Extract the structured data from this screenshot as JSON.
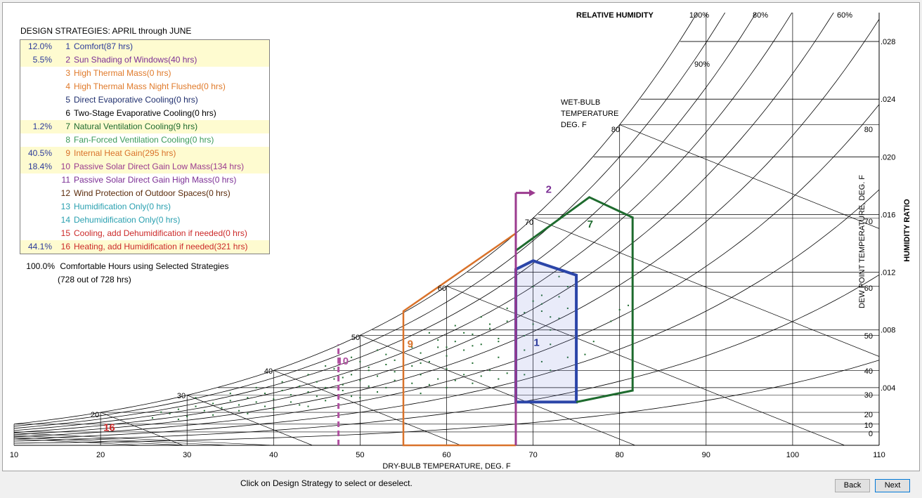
{
  "legend": {
    "title": "DESIGN STRATEGIES:  APRIL through JUNE",
    "items": [
      {
        "pct": "12.0%",
        "num": "1",
        "label": "Comfort(87 hrs)",
        "color": "#2b3a9a",
        "selected": true
      },
      {
        "pct": "5.5%",
        "num": "2",
        "label": "Sun Shading of Windows(40 hrs)",
        "color": "#7b2f95",
        "selected": true
      },
      {
        "pct": "",
        "num": "3",
        "label": "High Thermal Mass(0 hrs)",
        "color": "#e07a2a",
        "selected": false
      },
      {
        "pct": "",
        "num": "4",
        "label": "High Thermal Mass Night Flushed(0 hrs)",
        "color": "#e07a2a",
        "selected": false
      },
      {
        "pct": "",
        "num": "5",
        "label": "Direct Evaporative Cooling(0 hrs)",
        "color": "#1f2f6e",
        "selected": false
      },
      {
        "pct": "",
        "num": "6",
        "label": "Two-Stage Evaporative Cooling(0 hrs)",
        "color": "#000000",
        "selected": false
      },
      {
        "pct": "1.2%",
        "num": "7",
        "label": "Natural Ventilation Cooling(9 hrs)",
        "color": "#1e6b2e",
        "selected": true
      },
      {
        "pct": "",
        "num": "8",
        "label": "Fan-Forced Ventilation Cooling(0 hrs)",
        "color": "#3a9a5a",
        "selected": false
      },
      {
        "pct": "40.5%",
        "num": "9",
        "label": "Internal Heat Gain(295 hrs)",
        "color": "#d9722a",
        "selected": true
      },
      {
        "pct": "18.4%",
        "num": "10",
        "label": "Passive Solar Direct Gain Low Mass(134 hrs)",
        "color": "#9b3b8f",
        "selected": true
      },
      {
        "pct": "",
        "num": "11",
        "label": "Passive Solar Direct Gain High Mass(0 hrs)",
        "color": "#7b2f95",
        "selected": false
      },
      {
        "pct": "",
        "num": "12",
        "label": "Wind Protection of Outdoor Spaces(0 hrs)",
        "color": "#5a2a0a",
        "selected": false
      },
      {
        "pct": "",
        "num": "13",
        "label": "Humidification Only(0 hrs)",
        "color": "#2aa0b0",
        "selected": false
      },
      {
        "pct": "",
        "num": "14",
        "label": "Dehumidification Only(0 hrs)",
        "color": "#2aa0b0",
        "selected": false
      },
      {
        "pct": "",
        "num": "15",
        "label": "Cooling, add Dehumidification if needed(0 hrs)",
        "color": "#cc2a2a",
        "selected": false
      },
      {
        "pct": "44.1%",
        "num": "16",
        "label": "Heating, add Humidification if needed(321 hrs)",
        "color": "#cc2a2a",
        "selected": true
      }
    ],
    "comfortable_pct": "100.0%",
    "comfortable_label": "Comfortable Hours using Selected Strategies",
    "comfortable_sub": "(728 out of 728 hrs)"
  },
  "chart_data": {
    "type": "scatter",
    "xlabel": "DRY-BULB TEMPERATURE, DEG. F",
    "xlim": [
      10,
      110
    ],
    "x_ticks": [
      "10",
      "20",
      "30",
      "40",
      "50",
      "60",
      "70",
      "80",
      "90",
      "100",
      "110"
    ],
    "ylim": [
      0,
      0.03
    ],
    "ylabel_right": "HUMIDITY RATIO",
    "ratio_ticks": [
      ".004",
      ".008",
      ".012",
      ".016",
      ".020",
      ".024",
      ".028"
    ],
    "dewpoint_label": "DEW POINT TEMPERATURE, DEG. F",
    "dewpoint_ticks": [
      "0",
      "10",
      "20",
      "30",
      "40",
      "50",
      "60",
      "70",
      "80"
    ],
    "rh_title": "RELATIVE HUMIDITY",
    "rh_ticks": [
      "100%",
      "80%",
      "60%"
    ],
    "rh_inner_label": "90%",
    "wetbulb_label": [
      "WET-BULB",
      "TEMPERATURE",
      "DEG. F"
    ],
    "wetbulb_ticks": [
      "20",
      "30",
      "40",
      "50",
      "60",
      "70",
      "80"
    ],
    "zone_labels": [
      {
        "text": "1",
        "color": "#2b3a9a"
      },
      {
        "text": "2",
        "color": "#7b2f95"
      },
      {
        "text": "7",
        "color": "#1e6b2e"
      },
      {
        "text": "9",
        "color": "#d9722a"
      },
      {
        "text": "10",
        "color": "#b050a0"
      },
      {
        "text": "16",
        "color": "#cc2a2a"
      }
    ],
    "zones": {
      "comfort": {
        "color": "#2b45a8",
        "points": [
          [
            68,
            0.003
          ],
          [
            75,
            0.003
          ],
          [
            75,
            0.0118
          ],
          [
            70,
            0.0128
          ],
          [
            68,
            0.0122
          ]
        ]
      },
      "ventilation": {
        "color": "#1e6b2e",
        "points": [
          [
            75,
            0.003
          ],
          [
            81.5,
            0.0038
          ],
          [
            81.5,
            0.0158
          ],
          [
            76.5,
            0.0172
          ],
          [
            68,
            0.0135
          ]
        ]
      },
      "internal_gain": {
        "color": "#d9722a",
        "points": [
          [
            68,
            0.0
          ],
          [
            55,
            0.0
          ],
          [
            55,
            0.0093
          ],
          [
            68,
            0.0147
          ]
        ]
      },
      "shading_line": {
        "color": "#9b3b8f",
        "x": 68,
        "y_top": 0.0175
      },
      "passive_solar_line": {
        "color": "#b050a0",
        "x": 47.5,
        "y_top": 0.007
      }
    },
    "hourly_points_color": "#1e6b2e",
    "hourly_points": [
      [
        28,
        0.0022
      ],
      [
        29,
        0.0025
      ],
      [
        30,
        0.002
      ],
      [
        31,
        0.0027
      ],
      [
        32,
        0.0024
      ],
      [
        33,
        0.0029
      ],
      [
        34,
        0.0026
      ],
      [
        35,
        0.0031
      ],
      [
        36,
        0.0028
      ],
      [
        37,
        0.0033
      ],
      [
        38,
        0.003
      ],
      [
        39,
        0.0036
      ],
      [
        40,
        0.0032
      ],
      [
        41,
        0.0038
      ],
      [
        42,
        0.0035
      ],
      [
        43,
        0.0041
      ],
      [
        44,
        0.0037
      ],
      [
        45,
        0.0044
      ],
      [
        46,
        0.004
      ],
      [
        47,
        0.0046
      ],
      [
        48,
        0.0042
      ],
      [
        49,
        0.0049
      ],
      [
        50,
        0.0045
      ],
      [
        51,
        0.0052
      ],
      [
        52,
        0.0048
      ],
      [
        53,
        0.0056
      ],
      [
        54,
        0.0051
      ],
      [
        55,
        0.006
      ],
      [
        56,
        0.0055
      ],
      [
        57,
        0.0064
      ],
      [
        58,
        0.0058
      ],
      [
        59,
        0.0068
      ],
      [
        60,
        0.0062
      ],
      [
        61,
        0.0072
      ],
      [
        62,
        0.0066
      ],
      [
        63,
        0.0077
      ],
      [
        64,
        0.007
      ],
      [
        65,
        0.0081
      ],
      [
        66,
        0.0074
      ],
      [
        67,
        0.0086
      ],
      [
        68,
        0.0079
      ],
      [
        69,
        0.0092
      ],
      [
        70,
        0.0084
      ],
      [
        71,
        0.0098
      ],
      [
        72,
        0.0089
      ],
      [
        73,
        0.0103
      ],
      [
        74,
        0.0095
      ],
      [
        75,
        0.0109
      ],
      [
        29,
        0.0018
      ],
      [
        33,
        0.0021
      ],
      [
        36,
        0.0024
      ],
      [
        39,
        0.0027
      ],
      [
        42,
        0.003
      ],
      [
        45,
        0.0034
      ],
      [
        48,
        0.0038
      ],
      [
        51,
        0.0041
      ],
      [
        54,
        0.0045
      ],
      [
        57,
        0.0049
      ],
      [
        60,
        0.0053
      ],
      [
        63,
        0.0057
      ],
      [
        66,
        0.0061
      ],
      [
        69,
        0.0066
      ],
      [
        72,
        0.007
      ],
      [
        75,
        0.0075
      ],
      [
        31,
        0.0033
      ],
      [
        35,
        0.0036
      ],
      [
        38,
        0.004
      ],
      [
        41,
        0.0044
      ],
      [
        44,
        0.0049
      ],
      [
        47,
        0.0053
      ],
      [
        50,
        0.0058
      ],
      [
        53,
        0.0063
      ],
      [
        56,
        0.0068
      ],
      [
        59,
        0.0073
      ],
      [
        62,
        0.0078
      ],
      [
        65,
        0.0084
      ],
      [
        68,
        0.009
      ],
      [
        71,
        0.0104
      ],
      [
        74,
        0.011
      ],
      [
        76,
        0.0063
      ],
      [
        46,
        0.0055
      ],
      [
        49,
        0.0061
      ],
      [
        52,
        0.0066
      ],
      [
        55,
        0.0072
      ],
      [
        58,
        0.0078
      ],
      [
        61,
        0.0083
      ],
      [
        64,
        0.0089
      ],
      [
        67,
        0.0095
      ],
      [
        70,
        0.011
      ],
      [
        73,
        0.0117
      ],
      [
        77,
        0.0072
      ],
      [
        79,
        0.0086
      ],
      [
        80,
        0.0094
      ],
      [
        81,
        0.0097
      ],
      [
        53,
        0.004
      ],
      [
        56,
        0.0043
      ],
      [
        59,
        0.0046
      ],
      [
        62,
        0.0049
      ],
      [
        65,
        0.0052
      ],
      [
        68,
        0.0055
      ],
      [
        71,
        0.0058
      ],
      [
        74,
        0.0061
      ],
      [
        40,
        0.0025
      ],
      [
        43,
        0.0028
      ],
      [
        46,
        0.0031
      ],
      [
        49,
        0.0034
      ],
      [
        52,
        0.0037
      ],
      [
        55,
        0.0039
      ],
      [
        58,
        0.0042
      ],
      [
        61,
        0.0045
      ],
      [
        64,
        0.0048
      ],
      [
        67,
        0.005
      ],
      [
        26,
        0.0019
      ],
      [
        27,
        0.0023
      ],
      [
        37,
        0.0022
      ],
      [
        44,
        0.0027
      ],
      [
        50,
        0.0033
      ],
      [
        57,
        0.0036
      ],
      [
        60,
        0.004
      ],
      [
        63,
        0.0043
      ],
      [
        66,
        0.0046
      ],
      [
        69,
        0.0049
      ],
      [
        72,
        0.0052
      ],
      [
        75,
        0.0055
      ],
      [
        48,
        0.0047
      ],
      [
        51,
        0.0054
      ],
      [
        54,
        0.0059
      ],
      [
        57,
        0.0057
      ],
      [
        60,
        0.0068
      ],
      [
        63,
        0.0069
      ],
      [
        66,
        0.0072
      ],
      [
        69,
        0.0076
      ],
      [
        72,
        0.008
      ],
      [
        73,
        0.0088
      ],
      [
        71,
        0.0093
      ],
      [
        70,
        0.01
      ]
    ]
  },
  "footer": {
    "message": "Click on Design Strategy to select or deselect.",
    "back_label": "Back",
    "next_label": "Next"
  }
}
